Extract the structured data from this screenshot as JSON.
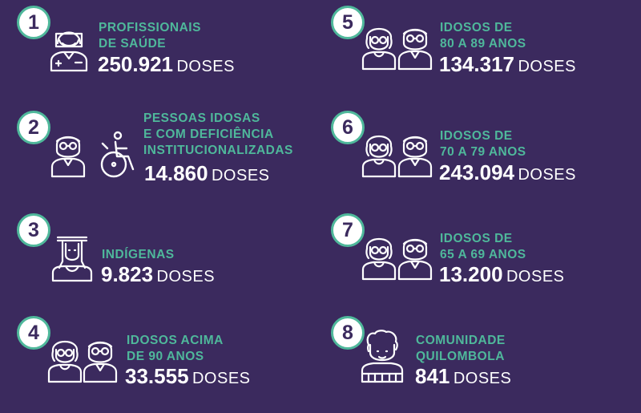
{
  "colors": {
    "background": "#3b2a5e",
    "accent": "#4fb89b",
    "text": "#ffffff"
  },
  "groups": [
    {
      "number": "1",
      "label_lines": [
        "PROFISSIONAIS",
        "DE SAÚDE"
      ],
      "doses": "250.921",
      "unit": "DOSES",
      "icons": [
        "health-worker-icon"
      ]
    },
    {
      "number": "2",
      "label_lines": [
        "PESSOAS IDOSAS",
        "E COM DEFICIÊNCIA",
        "INSTITUCIONALIZADAS"
      ],
      "doses": "14.860",
      "unit": "DOSES",
      "icons": [
        "elderly-man-icon",
        "wheelchair-icon"
      ]
    },
    {
      "number": "3",
      "label_lines": [
        "INDÍGENAS"
      ],
      "doses": "9.823",
      "unit": "DOSES",
      "icons": [
        "indigenous-person-icon"
      ]
    },
    {
      "number": "4",
      "label_lines": [
        "IDOSOS ACIMA",
        "DE 90 ANOS"
      ],
      "doses": "33.555",
      "unit": "DOSES",
      "icons": [
        "elderly-woman-icon",
        "elderly-man-icon"
      ]
    },
    {
      "number": "5",
      "label_lines": [
        "IDOSOS DE",
        "80 A 89 ANOS"
      ],
      "doses": "134.317",
      "unit": "DOSES",
      "icons": [
        "elderly-woman-icon",
        "elderly-man-icon"
      ]
    },
    {
      "number": "6",
      "label_lines": [
        "IDOSOS DE",
        "70 A 79 ANOS"
      ],
      "doses": "243.094",
      "unit": "DOSES",
      "icons": [
        "elderly-woman-icon",
        "elderly-man-icon"
      ]
    },
    {
      "number": "7",
      "label_lines": [
        "IDOSOS DE",
        "65 A 69 ANOS"
      ],
      "doses": "13.200",
      "unit": "DOSES",
      "icons": [
        "elderly-woman-icon",
        "elderly-man-icon"
      ]
    },
    {
      "number": "8",
      "label_lines": [
        "COMUNIDADE",
        "QUILOMBOLA"
      ],
      "doses": "841",
      "unit": "DOSES",
      "icons": [
        "quilombola-person-icon"
      ]
    }
  ]
}
